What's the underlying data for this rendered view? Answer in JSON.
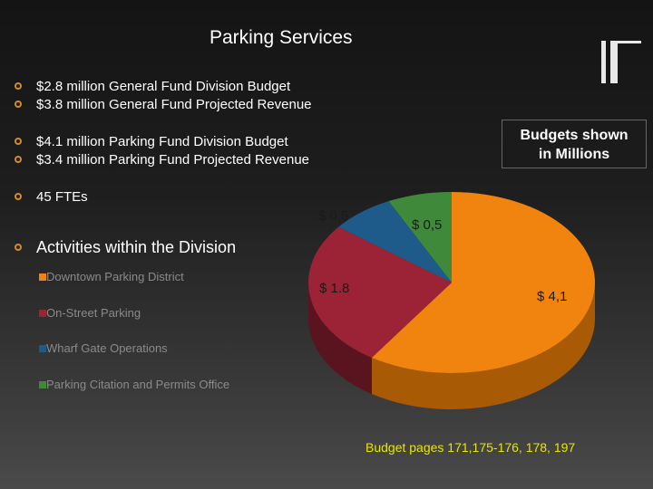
{
  "slide": {
    "title": "Parking Services",
    "bullets": [
      "$2.8 million General Fund Division Budget",
      "$3.8 million General Fund Projected Revenue",
      "$4.1 million  Parking Fund Division Budget",
      "$3.4 million  Parking Fund Projected Revenue",
      "45 FTEs",
      "Activities within the Division"
    ],
    "note": [
      "Budgets shown",
      "in Millions"
    ],
    "footer": "Budget pages 171,175-176, 178, 197"
  },
  "chart_data": {
    "type": "pie",
    "title": "",
    "legend_placement": "left",
    "slices": [
      {
        "name": "Downtown Parking District",
        "value": 4.1,
        "label": "$ 4,1",
        "color": "#f0840e",
        "side": "#a85a05"
      },
      {
        "name": "On-Street Parking",
        "value": 1.8,
        "label": "$ 1.8",
        "color": "#9b2335",
        "side": "#5a1420"
      },
      {
        "name": "Wharf Gate Operations",
        "value": 0.5,
        "label": "$ 0,5",
        "color": "#1e5a8a",
        "side": "#123a5a"
      },
      {
        "name": "Parking Citation and Permits Office",
        "value": 0.5,
        "label": "$ 0,5",
        "color": "#3e8a3a",
        "side": "#265a24"
      }
    ]
  }
}
